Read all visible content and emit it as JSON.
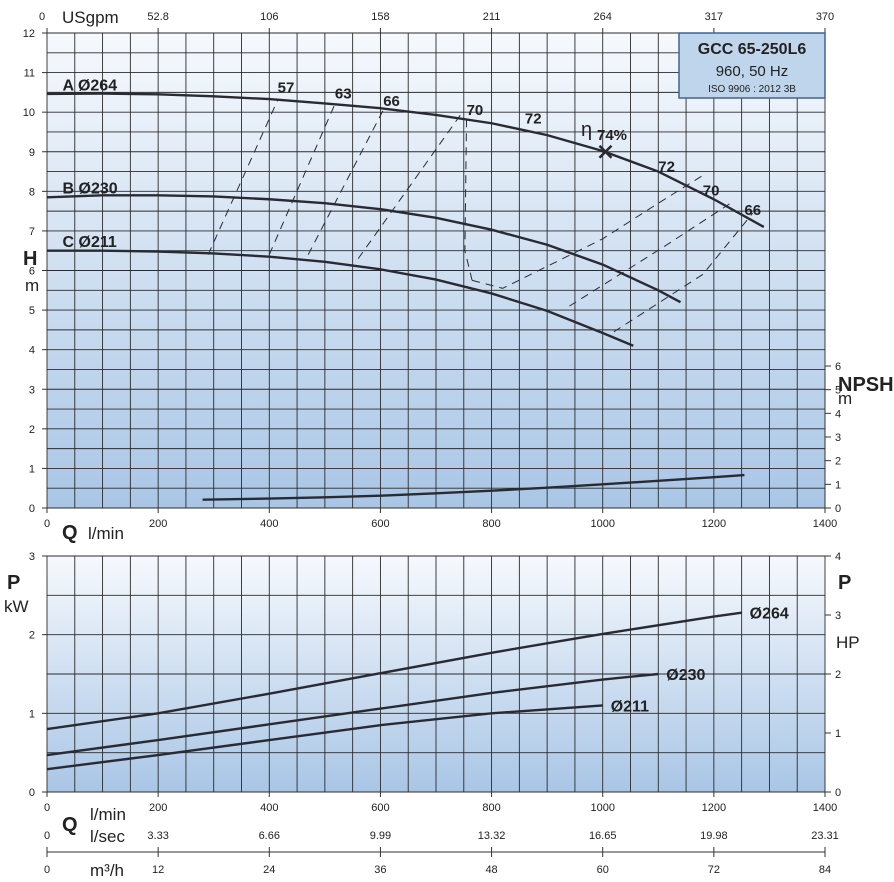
{
  "model_box": {
    "title": "GCC 65-250L6",
    "line1": "960, 50 Hz",
    "line2": "ISO 9906 : 2012 3B"
  },
  "axis_text": {
    "usgpm": "USgpm",
    "q_symbol": "Q",
    "lmin": "l/min",
    "lsec": "l/sec",
    "m3h": "m³/h",
    "h_symbol": "H",
    "h_unit": "m",
    "npsh_symbol": "NPSH",
    "npsh_unit": "m",
    "p_symbol": "P",
    "kw": "kW",
    "hp": "HP",
    "eta_symbol": "η",
    "best_eff": "74%"
  },
  "colors": {
    "plot_top": "#f6f9fd",
    "plot_bottom": "#a9c6e6",
    "curve": "#2a2a32",
    "box_fill": "#bfd5ec",
    "box_border": "#40638f"
  },
  "chart_data": [
    {
      "type": "line",
      "title": "Head (H) and NPSH vs flow (Q)",
      "x_axis": {
        "label": "Q l/min",
        "lim": [
          0,
          1400
        ],
        "ticks": [
          "0",
          "200",
          "400",
          "600",
          "800",
          "1000",
          "1200",
          "1400"
        ]
      },
      "x_axis_top": {
        "label": "USgpm",
        "ticks": [
          "0",
          "52.8",
          "106",
          "158",
          "211",
          "264",
          "317",
          "370"
        ]
      },
      "y_axis": {
        "label": "H m",
        "lim": [
          0,
          12
        ],
        "ticks": [
          "0",
          "1",
          "2",
          "3",
          "4",
          "5",
          "6",
          "7",
          "8",
          "9",
          "10",
          "11",
          "12"
        ]
      },
      "y_axis_right": {
        "label": "NPSH m",
        "lim": [
          0,
          6
        ],
        "ticks": [
          "0",
          "1",
          "2",
          "3",
          "4",
          "5",
          "6"
        ]
      },
      "grid": true,
      "series": [
        {
          "name": "A Ø264",
          "x": [
            0,
            100,
            200,
            300,
            400,
            500,
            600,
            700,
            800,
            900,
            1000,
            1100,
            1200,
            1290
          ],
          "y": [
            10.46,
            10.47,
            10.45,
            10.4,
            10.33,
            10.22,
            10.1,
            9.93,
            9.72,
            9.42,
            9.02,
            8.5,
            7.8,
            7.1
          ]
        },
        {
          "name": "B Ø230",
          "x": [
            0,
            100,
            200,
            300,
            400,
            500,
            600,
            700,
            800,
            900,
            1000,
            1100,
            1140
          ],
          "y": [
            7.85,
            7.9,
            7.9,
            7.87,
            7.8,
            7.7,
            7.55,
            7.33,
            7.03,
            6.65,
            6.15,
            5.5,
            5.2
          ]
        },
        {
          "name": "C Ø211",
          "x": [
            0,
            100,
            200,
            300,
            400,
            500,
            600,
            700,
            800,
            900,
            1000,
            1055
          ],
          "y": [
            6.5,
            6.5,
            6.48,
            6.43,
            6.35,
            6.22,
            6.03,
            5.77,
            5.42,
            4.98,
            4.42,
            4.1
          ]
        },
        {
          "name": "NPSH",
          "axis": "right",
          "x": [
            280,
            400,
            500,
            600,
            700,
            800,
            900,
            1000,
            1100,
            1200,
            1255
          ],
          "y": [
            0.35,
            0.4,
            0.45,
            0.52,
            0.62,
            0.73,
            0.86,
            1.0,
            1.15,
            1.3,
            1.39
          ]
        }
      ],
      "efficiency": {
        "best": {
          "label": "74%",
          "q": 1005,
          "h": 9.0
        },
        "labels": [
          {
            "text": "57",
            "q": 415,
            "h": 10.5
          },
          {
            "text": "63",
            "q": 518,
            "h": 10.35
          },
          {
            "text": "66",
            "q": 605,
            "h": 10.15
          },
          {
            "text": "70",
            "q": 755,
            "h": 9.93
          },
          {
            "text": "72",
            "q": 860,
            "h": 9.72
          },
          {
            "text": "72",
            "q": 1100,
            "h": 8.5
          },
          {
            "text": "70",
            "q": 1180,
            "h": 7.9
          },
          {
            "text": "66",
            "q": 1255,
            "h": 7.4
          }
        ]
      }
    },
    {
      "type": "line",
      "title": "Power (P) vs flow (Q)",
      "x_axis": {
        "label": "Q l/min",
        "lim": [
          0,
          1400
        ],
        "ticks": [
          "0",
          "200",
          "400",
          "600",
          "800",
          "1000",
          "1200",
          "1400"
        ]
      },
      "x_axis_lsec": {
        "label": "l/sec",
        "ticks": [
          "0",
          "3.33",
          "6.66",
          "9.99",
          "13.32",
          "16.65",
          "19.98",
          "23.31"
        ]
      },
      "x_axis_m3h": {
        "label": "m³/h",
        "lim": [
          0,
          84
        ],
        "ticks": [
          "0",
          "12",
          "24",
          "36",
          "48",
          "60",
          "72",
          "84"
        ]
      },
      "y_axis": {
        "label": "P kW",
        "lim": [
          0,
          3
        ],
        "ticks": [
          "0",
          "1",
          "2",
          "3"
        ]
      },
      "y_axis_right": {
        "label": "P HP",
        "lim": [
          0,
          4
        ],
        "ticks": [
          "0",
          "1",
          "2",
          "3",
          "4"
        ]
      },
      "grid": true,
      "series": [
        {
          "name": "Ø264",
          "x": [
            0,
            200,
            400,
            600,
            800,
            1000,
            1200,
            1250
          ],
          "y": [
            0.8,
            1.0,
            1.25,
            1.51,
            1.77,
            2.01,
            2.23,
            2.28
          ]
        },
        {
          "name": "Ø230",
          "x": [
            0,
            200,
            400,
            600,
            800,
            1000,
            1100
          ],
          "y": [
            0.47,
            0.66,
            0.86,
            1.06,
            1.26,
            1.43,
            1.5
          ]
        },
        {
          "name": "Ø211",
          "x": [
            0,
            200,
            400,
            600,
            800,
            1000
          ],
          "y": [
            0.29,
            0.47,
            0.66,
            0.85,
            1.0,
            1.1
          ]
        }
      ]
    }
  ]
}
